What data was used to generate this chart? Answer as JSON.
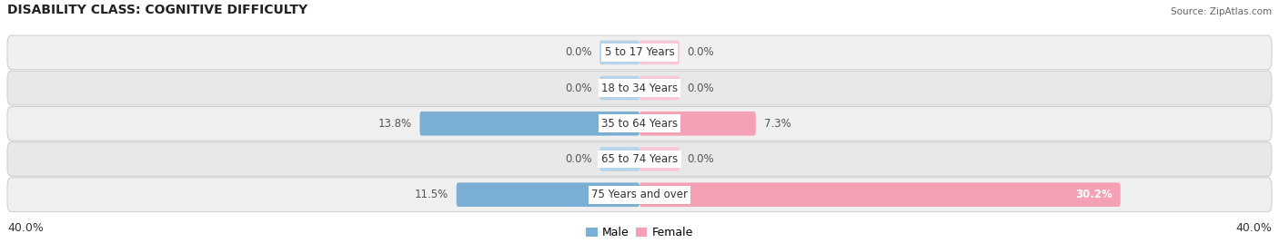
{
  "title": "DISABILITY CLASS: COGNITIVE DIFFICULTY",
  "source": "Source: ZipAtlas.com",
  "categories": [
    "5 to 17 Years",
    "18 to 34 Years",
    "35 to 64 Years",
    "65 to 74 Years",
    "75 Years and over"
  ],
  "male_values": [
    0.0,
    0.0,
    13.8,
    0.0,
    11.5
  ],
  "female_values": [
    0.0,
    0.0,
    7.3,
    0.0,
    30.2
  ],
  "x_max": 40.0,
  "male_color": "#7bafd4",
  "female_color": "#f4a0b5",
  "male_stub_color": "#b8d4ea",
  "female_stub_color": "#f8c8d5",
  "stub_size": 2.5,
  "label_fontsize": 8.5,
  "title_fontsize": 10,
  "legend_fontsize": 9,
  "axis_label_fontsize": 9,
  "center_label_color": "#333333",
  "value_label_color": "#555555",
  "value_label_inside_color": "#ffffff",
  "background_color": "#ffffff",
  "row_bg_even": "#f0f0f0",
  "row_bg_odd": "#e8e8e8"
}
